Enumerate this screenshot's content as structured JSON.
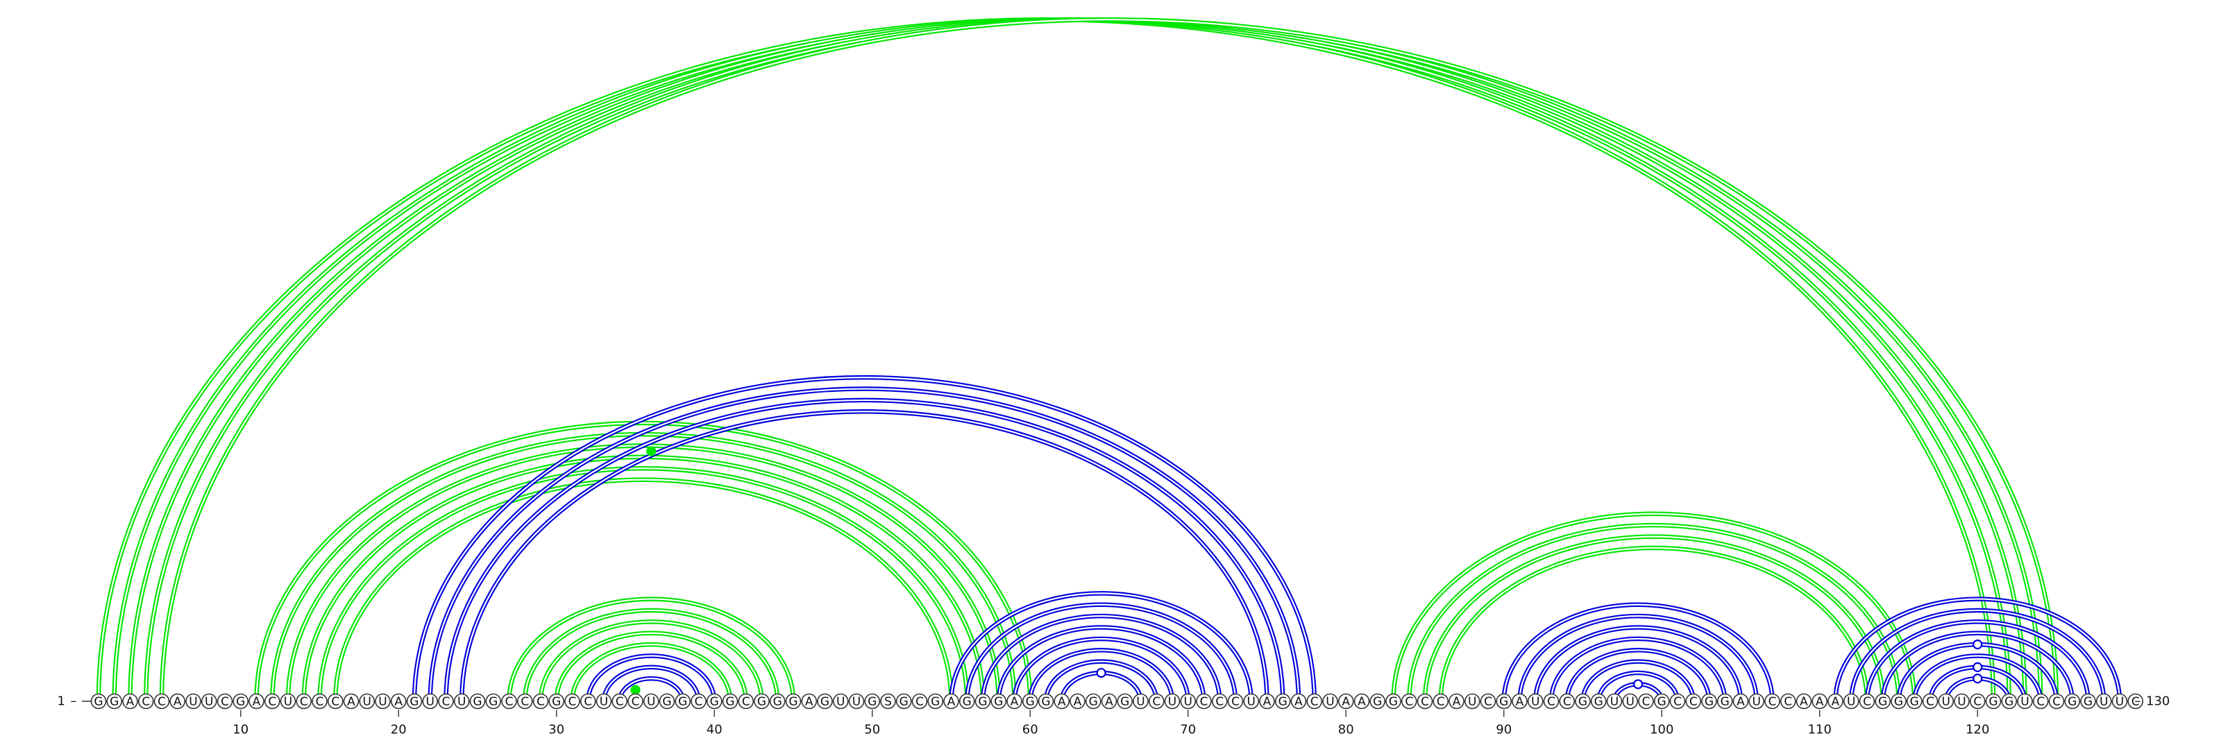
{
  "sequence": "GGACCAUUCGACUCCCAUUAGUCUGGCCCGCCUCCUGGCGGCGGGAGUUGSGCGAGGGAGGAAGAGUCUUCCCUAGACUAAGGCCCAUCGAUCCGGUUCGCCGGAUCCAAAUCGGGCUUCGGUCCGGUUC",
  "start_label": "1",
  "end_label": "130",
  "ticks": [
    10,
    20,
    30,
    40,
    50,
    60,
    70,
    80,
    90,
    100,
    110,
    120
  ],
  "colors": {
    "green": "#00e600",
    "blue": "#0000dd"
  },
  "chart_data": {
    "type": "arc-diagram",
    "helices": [
      {
        "color": "green",
        "pairs": [
          [
            1,
            121
          ],
          [
            2,
            122
          ],
          [
            3,
            123
          ],
          [
            4,
            124
          ],
          [
            5,
            125
          ]
        ]
      },
      {
        "color": "green",
        "pairs": [
          [
            11,
            60
          ],
          [
            12,
            59
          ],
          [
            13,
            58
          ],
          [
            14,
            57
          ],
          [
            15,
            56
          ],
          [
            16,
            55
          ]
        ]
      },
      {
        "color": "blue",
        "pairs": [
          [
            21,
            78
          ],
          [
            22,
            77
          ],
          [
            23,
            76
          ],
          [
            24,
            75
          ]
        ]
      },
      {
        "color": "green",
        "pairs": [
          [
            27,
            45
          ],
          [
            28,
            44
          ],
          [
            29,
            43
          ],
          [
            30,
            42
          ],
          [
            31,
            41
          ]
        ]
      },
      {
        "color": "blue",
        "pairs": [
          [
            32,
            40
          ],
          [
            33,
            39
          ],
          [
            34,
            38
          ]
        ]
      },
      {
        "color": "blue",
        "pairs": [
          [
            55,
            74
          ],
          [
            56,
            73
          ],
          [
            57,
            72
          ],
          [
            58,
            71
          ],
          [
            59,
            70
          ],
          [
            60,
            69
          ],
          [
            61,
            68
          ],
          [
            62,
            67
          ]
        ]
      },
      {
        "color": "green",
        "pairs": [
          [
            83,
            116
          ],
          [
            84,
            115
          ],
          [
            85,
            114
          ],
          [
            86,
            113
          ]
        ]
      },
      {
        "color": "blue",
        "pairs": [
          [
            90,
            107
          ],
          [
            91,
            106
          ],
          [
            92,
            105
          ],
          [
            93,
            104
          ],
          [
            94,
            103
          ],
          [
            95,
            102
          ],
          [
            96,
            101
          ],
          [
            97,
            100
          ]
        ]
      },
      {
        "color": "blue",
        "pairs": [
          [
            111,
            129
          ],
          [
            112,
            128
          ],
          [
            113,
            127
          ],
          [
            114,
            126
          ],
          [
            115,
            125
          ],
          [
            116,
            124
          ],
          [
            117,
            123
          ],
          [
            118,
            122
          ]
        ]
      }
    ],
    "markers": [
      {
        "color": "green",
        "filled": true,
        "pair": [
          34,
          36
        ]
      },
      {
        "color": "green",
        "filled": true,
        "pair": [
          14,
          58
        ]
      },
      {
        "color": "blue",
        "filled": false,
        "pair": [
          62,
          67
        ]
      },
      {
        "color": "blue",
        "filled": false,
        "pair": [
          97,
          100
        ]
      },
      {
        "color": "blue",
        "filled": false,
        "pair": [
          118,
          122
        ]
      },
      {
        "color": "blue",
        "filled": false,
        "pair": [
          117,
          123
        ]
      },
      {
        "color": "blue",
        "filled": false,
        "pair": [
          115,
          125
        ]
      }
    ]
  }
}
